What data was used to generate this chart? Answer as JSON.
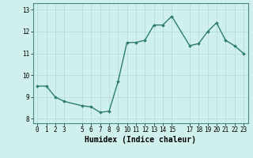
{
  "x": [
    0,
    1,
    2,
    3,
    5,
    6,
    7,
    8,
    9,
    10,
    11,
    12,
    13,
    14,
    15,
    17,
    18,
    19,
    20,
    21,
    22,
    23
  ],
  "y": [
    9.5,
    9.5,
    9.0,
    8.8,
    8.6,
    8.55,
    8.3,
    8.35,
    9.7,
    11.5,
    11.5,
    11.6,
    12.3,
    12.3,
    12.7,
    11.35,
    11.45,
    12.0,
    12.4,
    11.6,
    11.35,
    11.0
  ],
  "xlabel": "Humidex (Indice chaleur)",
  "xlim": [
    -0.5,
    23.5
  ],
  "ylim": [
    7.8,
    13.3
  ],
  "yticks": [
    8,
    9,
    10,
    11,
    12,
    13
  ],
  "xticks": [
    0,
    1,
    2,
    3,
    5,
    6,
    7,
    8,
    9,
    10,
    11,
    12,
    13,
    14,
    15,
    17,
    18,
    19,
    20,
    21,
    22,
    23
  ],
  "xtick_labels": [
    "0",
    "1",
    "2",
    "3",
    "5",
    "6",
    "7",
    "8",
    "9",
    "10",
    "11",
    "12",
    "13",
    "14",
    "15",
    "17",
    "18",
    "19",
    "20",
    "21",
    "22",
    "23"
  ],
  "line_color": "#2e7d6e",
  "marker": "D",
  "marker_size": 1.8,
  "line_width": 1.0,
  "bg_color": "#cff0ec",
  "grid_color": "#b8ddd9",
  "xlabel_fontsize": 7,
  "tick_fontsize": 5.5
}
